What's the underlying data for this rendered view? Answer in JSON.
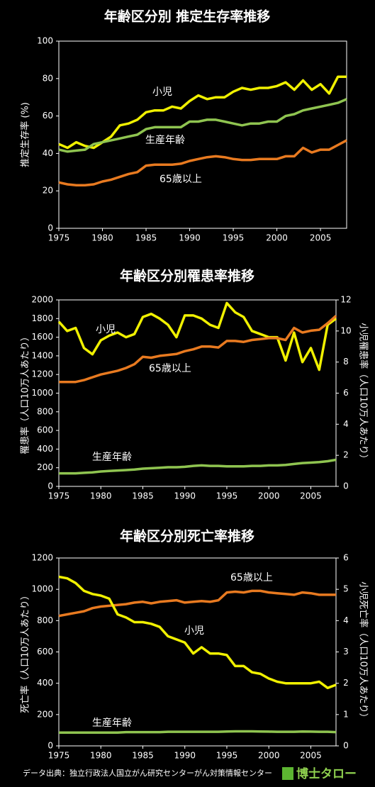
{
  "chart_data": [
    {
      "type": "line",
      "title": "年齢区分別  推定生存率推移",
      "y_label": "推定生存率 (%)",
      "x": [
        1975,
        1976,
        1977,
        1978,
        1979,
        1980,
        1981,
        1982,
        1983,
        1984,
        1985,
        1986,
        1987,
        1988,
        1989,
        1990,
        1991,
        1992,
        1993,
        1994,
        1995,
        1996,
        1997,
        1998,
        1999,
        2000,
        2001,
        2002,
        2003,
        2004,
        2005,
        2006,
        2007,
        2008
      ],
      "xlim": [
        1975,
        2008
      ],
      "xticks": [
        1975,
        1980,
        1985,
        1990,
        1995,
        2000,
        2005
      ],
      "ylim": [
        0,
        100
      ],
      "yticks": [
        0,
        20,
        40,
        60,
        80,
        100
      ],
      "series": [
        {
          "name": "小児",
          "color": "#f0f000",
          "values": [
            45,
            43,
            46,
            44,
            43,
            46,
            49,
            55,
            56,
            58,
            62,
            63,
            63,
            65,
            64,
            68,
            71,
            69,
            70,
            70,
            73,
            75,
            74,
            75,
            75,
            76,
            78,
            74,
            79,
            74,
            77,
            72,
            81,
            81
          ]
        },
        {
          "name": "生産年齢",
          "color": "#8fc450",
          "values": [
            42,
            41,
            41.5,
            42,
            45,
            46,
            47,
            48,
            49,
            50,
            53,
            54,
            54,
            54,
            54,
            57,
            57,
            58,
            58,
            57,
            56,
            55,
            56,
            56,
            57,
            57,
            60,
            61,
            63,
            64,
            65,
            66,
            67,
            69
          ]
        },
        {
          "name": "65歳以上",
          "color": "#e87a20",
          "values": [
            24.5,
            23.5,
            23,
            23,
            23.5,
            25,
            26,
            27.5,
            29,
            30,
            33.5,
            34,
            34,
            34,
            34.5,
            36,
            37,
            38,
            38.5,
            38,
            37,
            36.5,
            36.5,
            37,
            37,
            37,
            38.5,
            38.5,
            43,
            40.5,
            42,
            42,
            44.5,
            47
          ]
        }
      ]
    },
    {
      "type": "line",
      "title": "年齢区分別罹患率推移",
      "y_label": "罹患率（人口10万人あたり）",
      "y2_label": "小児罹患率（人口10万人あたり）",
      "x": [
        1975,
        1976,
        1977,
        1978,
        1979,
        1980,
        1981,
        1982,
        1983,
        1984,
        1985,
        1986,
        1987,
        1988,
        1989,
        1990,
        1991,
        1992,
        1993,
        1994,
        1995,
        1996,
        1997,
        1998,
        1999,
        2000,
        2001,
        2002,
        2003,
        2004,
        2005,
        2006,
        2007,
        2008
      ],
      "xlim": [
        1975,
        2008
      ],
      "xticks": [
        1975,
        1980,
        1985,
        1990,
        1995,
        2000,
        2005
      ],
      "ylim": [
        0,
        2000
      ],
      "yticks": [
        0,
        200,
        400,
        600,
        800,
        1000,
        1200,
        1400,
        1600,
        1800,
        2000
      ],
      "y2lim": [
        0,
        12
      ],
      "y2ticks": [
        0,
        2,
        4,
        6,
        8,
        10,
        12
      ],
      "series": [
        {
          "name": "小児",
          "color": "#f0f000",
          "axis": "y2",
          "values": [
            10.6,
            10.0,
            10.2,
            8.9,
            8.5,
            9.4,
            9.7,
            9.9,
            9.6,
            9.8,
            10.9,
            11.1,
            10.8,
            10.4,
            9.6,
            11.0,
            11.0,
            10.8,
            10.4,
            10.2,
            11.8,
            11.2,
            10.9,
            10.0,
            9.8,
            9.6,
            9.6,
            8.1,
            9.9,
            8.0,
            8.9,
            7.5,
            10.4,
            10.8
          ]
        },
        {
          "name": "65歳以上",
          "color": "#e87a20",
          "values": [
            1120,
            1120,
            1120,
            1140,
            1170,
            1200,
            1220,
            1240,
            1270,
            1310,
            1390,
            1380,
            1400,
            1410,
            1420,
            1450,
            1470,
            1500,
            1500,
            1490,
            1560,
            1560,
            1550,
            1570,
            1580,
            1590,
            1590,
            1570,
            1700,
            1650,
            1670,
            1680,
            1750,
            1830
          ]
        },
        {
          "name": "生産年齢",
          "color": "#8fc450",
          "values": [
            140,
            140,
            140,
            145,
            150,
            160,
            165,
            170,
            175,
            180,
            190,
            195,
            200,
            205,
            205,
            210,
            220,
            225,
            220,
            220,
            215,
            215,
            215,
            220,
            220,
            225,
            225,
            230,
            240,
            250,
            255,
            260,
            270,
            285
          ]
        }
      ]
    },
    {
      "type": "line",
      "title": "年齢区分別死亡率推移",
      "y_label": "死亡率（人口10万人あたり）",
      "y2_label": "小児死亡率（人口10万人あたり）",
      "x": [
        1975,
        1976,
        1977,
        1978,
        1979,
        1980,
        1981,
        1982,
        1983,
        1984,
        1985,
        1986,
        1987,
        1988,
        1989,
        1990,
        1991,
        1992,
        1993,
        1994,
        1995,
        1996,
        1997,
        1998,
        1999,
        2000,
        2001,
        2002,
        2003,
        2004,
        2005,
        2006,
        2007,
        2008
      ],
      "xlim": [
        1975,
        2008
      ],
      "xticks": [
        1975,
        1980,
        1985,
        1990,
        1995,
        2000,
        2005
      ],
      "ylim": [
        0,
        1200
      ],
      "yticks": [
        0,
        200,
        400,
        600,
        800,
        1000,
        1200
      ],
      "y2lim": [
        0,
        6
      ],
      "y2ticks": [
        0,
        1,
        2,
        3,
        4,
        5,
        6
      ],
      "series": [
        {
          "name": "65歳以上",
          "color": "#e87a20",
          "values": [
            830,
            840,
            850,
            860,
            880,
            890,
            895,
            900,
            905,
            915,
            920,
            910,
            920,
            925,
            930,
            915,
            920,
            925,
            920,
            930,
            980,
            985,
            980,
            990,
            990,
            980,
            975,
            970,
            965,
            980,
            975,
            965,
            965,
            965
          ]
        },
        {
          "name": "小児",
          "color": "#f0f000",
          "axis": "y2",
          "values": [
            5.4,
            5.35,
            5.2,
            4.95,
            4.85,
            4.8,
            4.7,
            4.2,
            4.1,
            3.95,
            3.95,
            3.9,
            3.8,
            3.5,
            3.4,
            3.3,
            2.95,
            3.15,
            2.95,
            2.95,
            2.9,
            2.55,
            2.55,
            2.35,
            2.3,
            2.15,
            2.05,
            2.0,
            2.0,
            2.0,
            2.0,
            2.05,
            1.85,
            1.95
          ]
        },
        {
          "name": "生産年齢",
          "color": "#8fc450",
          "values": [
            85,
            85,
            85,
            85,
            85,
            85,
            85,
            85,
            88,
            88,
            88,
            88,
            88,
            90,
            90,
            90,
            90,
            90,
            90,
            90,
            92,
            93,
            93,
            93,
            92,
            91,
            90,
            90,
            90,
            92,
            91,
            90,
            90,
            88
          ]
        }
      ]
    }
  ],
  "footer": {
    "source": "データ出典：独立行政法人国立がん研究センターがん対策情報センター",
    "logo": "博士タロー"
  }
}
